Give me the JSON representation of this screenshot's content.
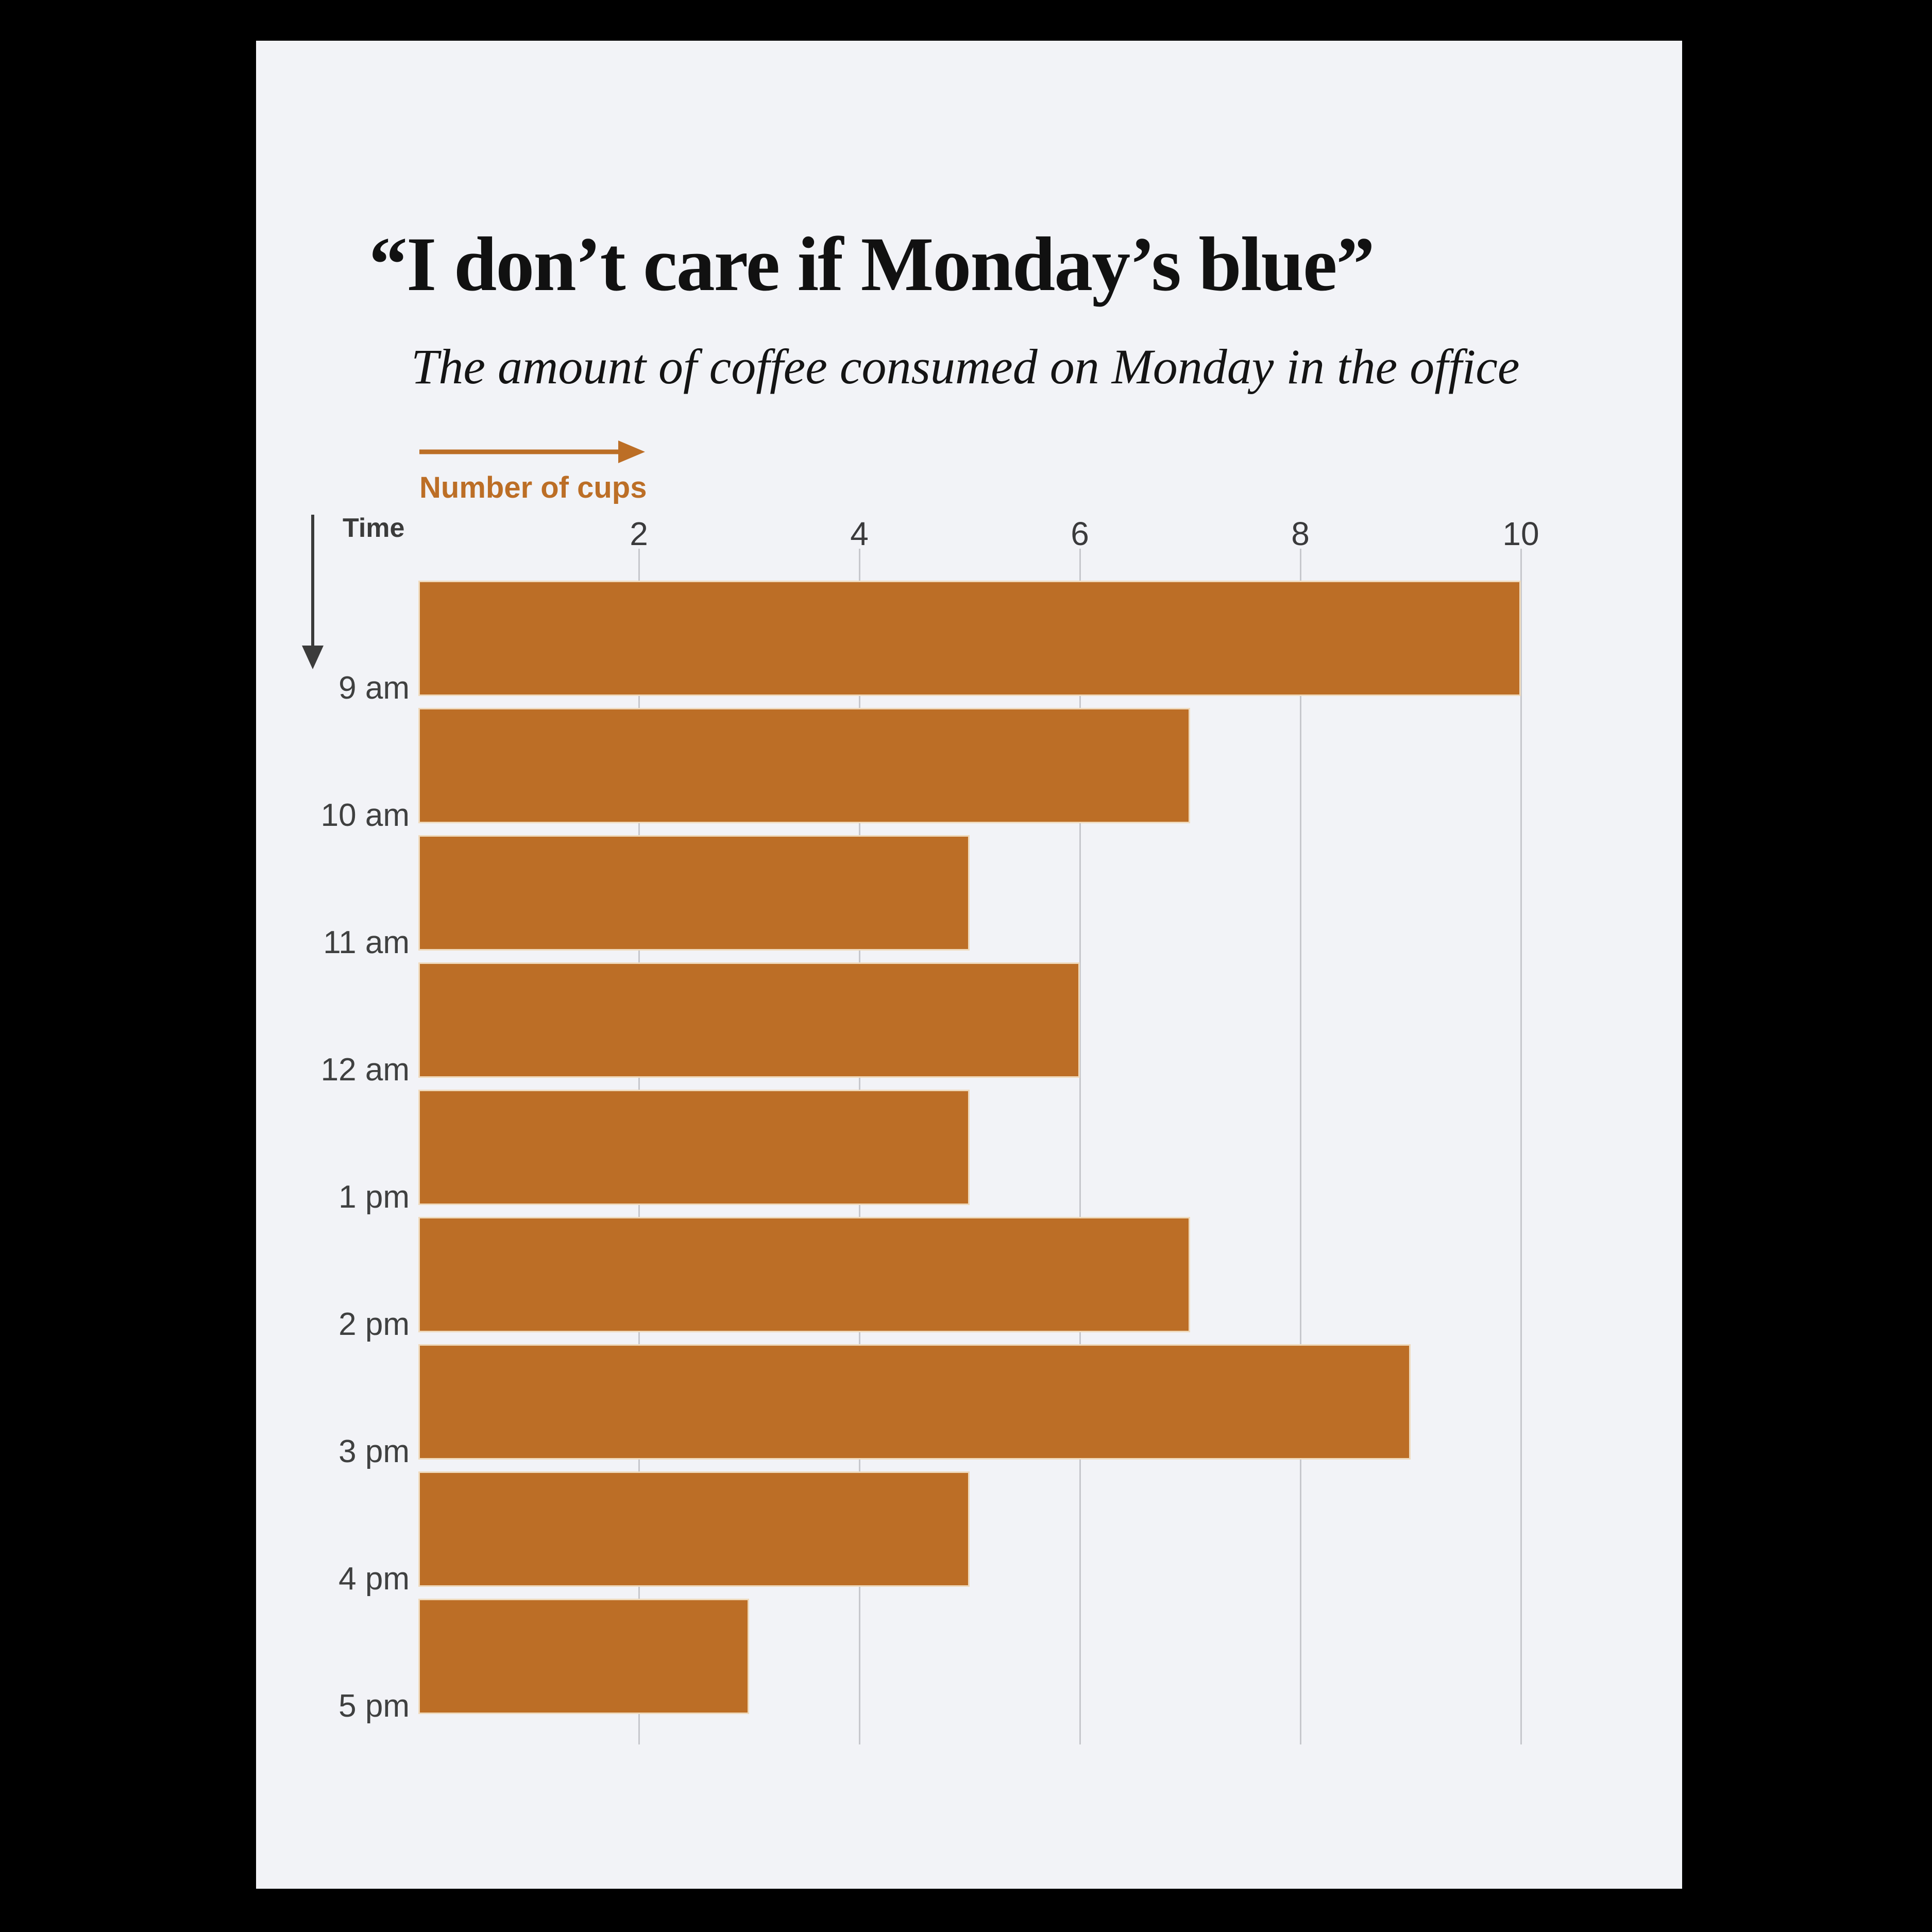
{
  "page": {
    "background": "#000000"
  },
  "card": {
    "background": "#F2F3F7"
  },
  "chart": {
    "title": "“I don’t care if Monday’s blue”",
    "subtitle": "The amount of coffee consumed on Monday in the office",
    "xlabel": "Number of cups",
    "ylabel": "Time"
  },
  "icons": {
    "x_axis_arrow": "right-arrow-icon",
    "y_axis_arrow": "down-arrow-icon"
  },
  "chart_data": {
    "type": "bar",
    "orientation": "horizontal",
    "title": "“I don’t care if Monday’s blue”",
    "subtitle": "The amount of coffee consumed on Monday in the office",
    "xlabel": "Number of cups",
    "ylabel": "Time",
    "categories": [
      "9 am",
      "10 am",
      "11 am",
      "12 am",
      "1 pm",
      "2 pm",
      "3 pm",
      "4 pm",
      "5 pm"
    ],
    "values": [
      10,
      7,
      5,
      6,
      5,
      7,
      9,
      5,
      3
    ],
    "xticks": [
      2,
      4,
      6,
      8,
      10
    ],
    "xlim": [
      0,
      11
    ],
    "grid": true,
    "legend": false,
    "bar_color": "#BC6E26",
    "grid_color": "#C6C7CC",
    "text_color": "#3B3B3B",
    "accent_color": "#BC6E26",
    "card_background": "#F2F3F7",
    "page_background": "#000000"
  }
}
